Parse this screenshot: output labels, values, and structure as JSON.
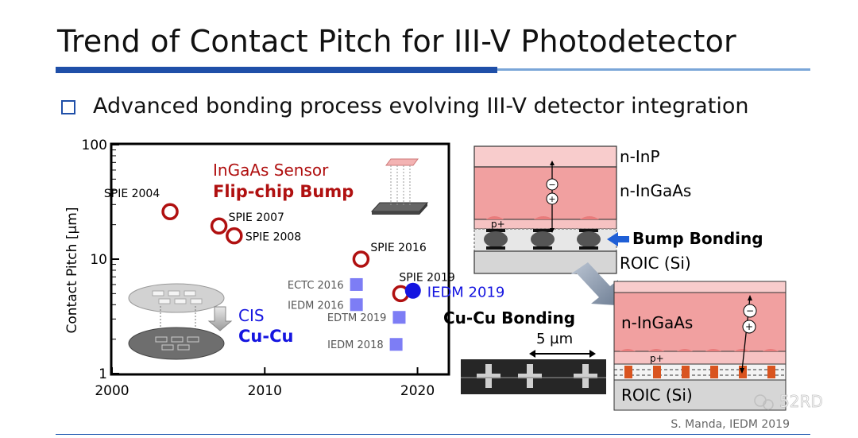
{
  "slide": {
    "title": "Trend of Contact Pitch for III-V Photodetector",
    "bullet": "Advanced bonding process evolving III-V detector integration",
    "citation": "S. Manda, IEDM 2019",
    "watermark": "52RD"
  },
  "chart_data": {
    "type": "scatter",
    "title": "",
    "xlabel": "",
    "ylabel": "Contact Pitch [µm]",
    "x_scale": "linear",
    "y_scale": "log",
    "xlim": [
      2000,
      2022
    ],
    "ylim": [
      1,
      100
    ],
    "x_ticks": [
      "2000",
      "2010",
      "2020"
    ],
    "y_ticks": [
      "1",
      "10",
      "100"
    ],
    "series": [
      {
        "name": "InGaAs Sensor Flip-chip Bump",
        "marker": "open-circle",
        "color": "#b01010",
        "points": [
          {
            "label": "SPIE 2004",
            "x": 2003.8,
            "y": 26
          },
          {
            "label": "SPIE 2007",
            "x": 2007.0,
            "y": 19.5
          },
          {
            "label": "SPIE 2008",
            "x": 2008.0,
            "y": 16
          },
          {
            "label": "SPIE 2016",
            "x": 2016.3,
            "y": 10
          },
          {
            "label": "SPIE 2019",
            "x": 2018.9,
            "y": 5
          }
        ]
      },
      {
        "name": "CIS Cu-Cu",
        "marker": "square",
        "color": "#7d7df5",
        "points": [
          {
            "label": "ECTC 2016",
            "x": 2016.0,
            "y": 6
          },
          {
            "label": "IEDM 2016",
            "x": 2016.0,
            "y": 4
          },
          {
            "label": "EDTM 2019",
            "x": 2018.8,
            "y": 3.1
          },
          {
            "label": "IEDM 2018",
            "x": 2018.6,
            "y": 1.8
          }
        ]
      },
      {
        "name": "IEDM 2019",
        "marker": "filled-circle",
        "color": "#1515e0",
        "points": [
          {
            "label": "IEDM 2019",
            "x": 2019.7,
            "y": 5.3
          }
        ]
      }
    ],
    "annotations": {
      "ingaas_line1": "InGaAs Sensor",
      "ingaas_line2": "Flip-chip Bump",
      "cis_line1": "CIS",
      "cis_line2": "Cu-Cu"
    }
  },
  "diagram": {
    "top": {
      "n_inp": "n-InP",
      "n_ingaas": "n-InGaAs",
      "p_plus": "p+",
      "bump_bonding": "Bump Bonding",
      "roic": "ROIC (Si)",
      "minus": "−",
      "plus": "+"
    },
    "bottom": {
      "cucu_bonding": "Cu-Cu Bonding",
      "scale": "5 µm",
      "n_ingaas": "n-InGaAs",
      "p_plus": "p+",
      "roic": "ROIC (Si)",
      "minus": "−",
      "plus": "+"
    }
  },
  "colors": {
    "accent": "#1f4fa8",
    "ingaas_red": "#b01010",
    "cucu_blue": "#1515e0",
    "layer_pink": "#f1a0a0",
    "layer_light_pink": "#f8cccc",
    "roic_gray": "#d6d6d6"
  }
}
